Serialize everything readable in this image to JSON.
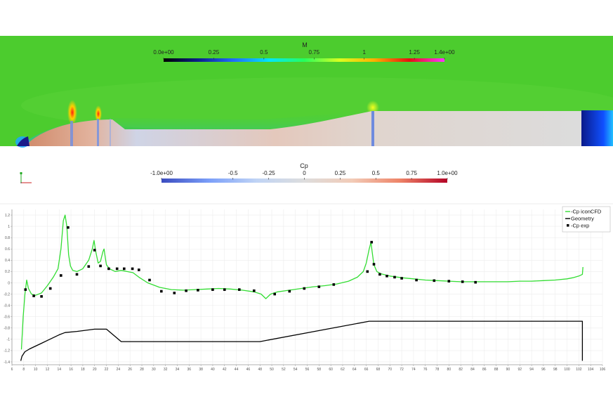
{
  "mach_panel": {
    "colorbar": {
      "title": "M",
      "tick_labels": [
        "0.0e+00",
        "0.25",
        "0.5",
        "0.75",
        "1",
        "1.25",
        "1.4e+00"
      ],
      "tick_values": [
        0,
        0.25,
        0.5,
        0.75,
        1,
        1.25,
        1.4
      ],
      "range": [
        0,
        1.4
      ],
      "colors": [
        "#000000",
        "#0b1f8c",
        "#1f6dff",
        "#00e6ff",
        "#25ff5c",
        "#d8ff20",
        "#ffb000",
        "#e61010",
        "#ff33ff"
      ]
    },
    "background_color": "#4ccc2e"
  },
  "cp_panel": {
    "colorbar": {
      "title": "Cp",
      "tick_labels": [
        "-1.0e+00",
        "-0.5",
        "-0.25",
        "0",
        "0.25",
        "0.5",
        "0.75",
        "1.0e+00"
      ],
      "tick_values": [
        -1,
        -0.5,
        -0.25,
        0,
        0.25,
        0.5,
        0.75,
        1
      ],
      "range": [
        -1,
        1
      ],
      "colors": [
        "#3b4cc0",
        "#7b9ff9",
        "#c0d4f5",
        "#dddddd",
        "#f2cbb7",
        "#ee8468",
        "#b40426"
      ]
    },
    "body_color": "#d8d4cf"
  },
  "chart_data": {
    "type": "line",
    "x_tick_labels": [
      "6",
      "8",
      "10",
      "12",
      "14",
      "16",
      "18",
      "20",
      "22",
      "24",
      "26",
      "28",
      "30",
      "32",
      "34",
      "36",
      "38",
      "40",
      "42",
      "44",
      "46",
      "48",
      "50",
      "52",
      "54",
      "56",
      "58",
      "60",
      "62",
      "64",
      "66",
      "68",
      "70",
      "72",
      "74",
      "76",
      "78",
      "80",
      "82",
      "84",
      "86",
      "88",
      "90",
      "92",
      "94",
      "96",
      "98",
      "100",
      "102",
      "104",
      "106"
    ],
    "y_tick_labels": [
      "1.2",
      "1",
      "0.8",
      "0.6",
      "0.4",
      "0.2",
      "0",
      "-0.2",
      "-0.4",
      "-0.6",
      "-0.8",
      "-1",
      "-1.2",
      "-1.4"
    ],
    "xlim": [
      6,
      106
    ],
    "ylim": [
      -1.45,
      1.3
    ],
    "grid": true,
    "legend_position": "top-right",
    "series": [
      {
        "name": "-Cp iconCFD",
        "color": "#33dd33",
        "style": "line",
        "x": [
          7.6,
          7.9,
          8.2,
          8.5,
          8.8,
          9.3,
          10,
          11,
          12,
          13,
          13.8,
          14.3,
          14.7,
          15,
          15.3,
          15.6,
          15.9,
          16.3,
          17,
          18,
          19,
          19.6,
          19.9,
          20.2,
          20.6,
          21,
          21.4,
          21.6,
          21.8,
          22,
          22.5,
          23.5,
          24.5,
          25.5,
          26.5,
          27.5,
          29,
          31,
          33,
          35,
          37,
          39,
          41,
          43,
          45,
          47,
          48.2,
          49,
          49.8,
          51,
          53,
          55,
          57,
          59,
          61,
          63,
          64.5,
          65.5,
          66,
          66.5,
          66.8,
          67,
          67.3,
          67.8,
          68.5,
          70,
          72,
          74,
          76,
          78,
          80,
          82,
          84,
          86,
          88,
          90,
          92,
          94,
          96,
          98,
          100,
          101,
          102,
          102.6,
          102.7
        ],
        "y": [
          -1.18,
          -0.6,
          -0.2,
          0.05,
          -0.1,
          -0.2,
          -0.22,
          -0.18,
          -0.05,
          0.1,
          0.25,
          0.6,
          1.1,
          1.2,
          1.0,
          0.5,
          0.3,
          0.22,
          0.2,
          0.25,
          0.4,
          0.6,
          0.75,
          0.55,
          0.35,
          0.38,
          0.55,
          0.6,
          0.45,
          0.32,
          0.25,
          0.2,
          0.22,
          0.2,
          0.18,
          0.1,
          0.0,
          -0.08,
          -0.12,
          -0.13,
          -0.12,
          -0.11,
          -0.1,
          -0.11,
          -0.13,
          -0.16,
          -0.2,
          -0.28,
          -0.2,
          -0.16,
          -0.13,
          -0.1,
          -0.07,
          -0.05,
          -0.02,
          0.03,
          0.1,
          0.2,
          0.35,
          0.6,
          0.72,
          0.55,
          0.32,
          0.2,
          0.16,
          0.12,
          0.09,
          0.07,
          0.05,
          0.04,
          0.03,
          0.02,
          0.02,
          0.02,
          0.02,
          0.02,
          0.03,
          0.03,
          0.04,
          0.05,
          0.07,
          0.09,
          0.12,
          0.15,
          0.28
        ]
      },
      {
        "name": "Geometry",
        "color": "#000000",
        "style": "line",
        "x": [
          7.5,
          7.7,
          8.2,
          9,
          10,
          11,
          12,
          13,
          14,
          15,
          17,
          20,
          22,
          24.5,
          48,
          66.5,
          102.6,
          102.6
        ],
        "y": [
          -1.38,
          -1.3,
          -1.22,
          -1.17,
          -1.12,
          -1.07,
          -1.02,
          -0.97,
          -0.92,
          -0.88,
          -0.86,
          -0.82,
          -0.82,
          -1.04,
          -1.04,
          -0.68,
          -0.68,
          -1.38
        ]
      },
      {
        "name": "-Cp exp",
        "color": "#000000",
        "style": "marker",
        "x": [
          8.3,
          9.7,
          11,
          12.5,
          14.3,
          15.5,
          17,
          19,
          20,
          21,
          22.4,
          23.8,
          25,
          26.4,
          27.5,
          29.3,
          31.3,
          33.5,
          35.5,
          37.5,
          40,
          42,
          44.5,
          47,
          50.5,
          53,
          55.5,
          58,
          60.5,
          66.2,
          66.9,
          67.3,
          68.3,
          69.5,
          70.8,
          72,
          74.5,
          77.5,
          80,
          82.3,
          84.5
        ],
        "y": [
          -0.12,
          -0.23,
          -0.24,
          -0.1,
          0.13,
          0.98,
          0.15,
          0.29,
          0.58,
          0.3,
          0.25,
          0.25,
          0.25,
          0.25,
          0.23,
          0.05,
          -0.15,
          -0.18,
          -0.14,
          -0.13,
          -0.12,
          -0.12,
          -0.12,
          -0.14,
          -0.2,
          -0.15,
          -0.1,
          -0.07,
          -0.03,
          0.2,
          0.72,
          0.33,
          0.15,
          0.12,
          0.1,
          0.08,
          0.05,
          0.04,
          0.03,
          0.02,
          0.01
        ]
      }
    ]
  }
}
